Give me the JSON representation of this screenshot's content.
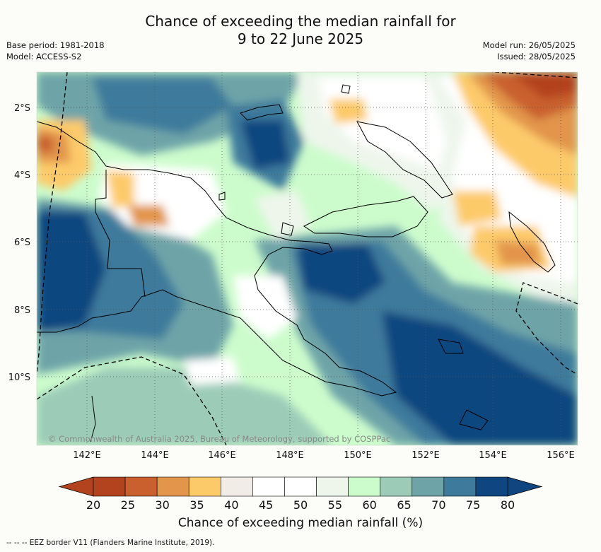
{
  "title_line1": "Chance of exceeding the median rainfall for",
  "title_line2": "9 to 22 June 2025",
  "base_period": "Base period: 1981-2018",
  "model": "Model: ACCESS-S2",
  "model_run": "Model run: 26/05/2025",
  "issued": "Issued: 28/05/2025",
  "lat_labels": [
    "2°S",
    "4°S",
    "6°S",
    "8°S",
    "10°S"
  ],
  "lon_labels": [
    "142°E",
    "144°E",
    "146°E",
    "148°E",
    "150°E",
    "152°E",
    "154°E",
    "156°E"
  ],
  "colorbar": {
    "ticks": [
      "20",
      "25",
      "30",
      "35",
      "40",
      "45",
      "50",
      "55",
      "60",
      "65",
      "70",
      "75",
      "80"
    ],
    "colors": [
      "#b3421f",
      "#c9602e",
      "#e2954b",
      "#fdca6a",
      "#f1ede6",
      "#ffffff",
      "#ffffff",
      "#eef6ec",
      "#ccfccc",
      "#9cccb8",
      "#6ea4a8",
      "#3e7a9c",
      "#10467f"
    ],
    "under_color": "#b3421f",
    "over_color": "#10467f",
    "label": "Chance of exceeding median rainfall (%)"
  },
  "copyright": "© Commonwealth of Australia 2025, Bureau of Meteorology, supported by COSPPac",
  "footer": "-- -- -- EEZ border V11 (Flanders Marine Institute, 2019)."
}
